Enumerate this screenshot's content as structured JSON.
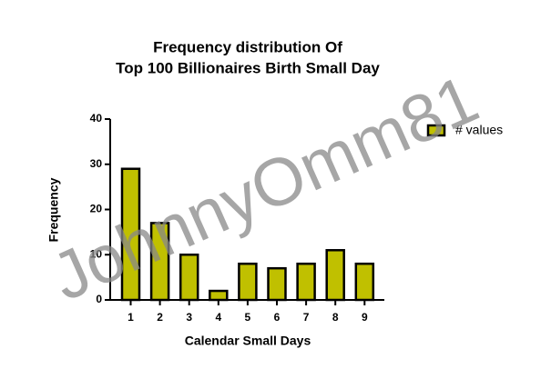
{
  "chart_data": {
    "type": "bar",
    "title": [
      "Frequency distribution Of",
      "Top 100 Billionaires Birth Small Day"
    ],
    "x_label": "Calendar Small Days",
    "y_label": "Frequency",
    "categories": [
      "1",
      "2",
      "3",
      "4",
      "5",
      "6",
      "7",
      "8",
      "9"
    ],
    "series": [
      {
        "name": "# values",
        "color": "#c0c000",
        "values": [
          29,
          17,
          10,
          2,
          8,
          7,
          8,
          11,
          8
        ]
      }
    ],
    "ylim": [
      0,
      40
    ],
    "yticks": [
      0,
      10,
      20,
      30,
      40
    ],
    "legend": "right",
    "watermark": "JohnnyOmm81"
  }
}
